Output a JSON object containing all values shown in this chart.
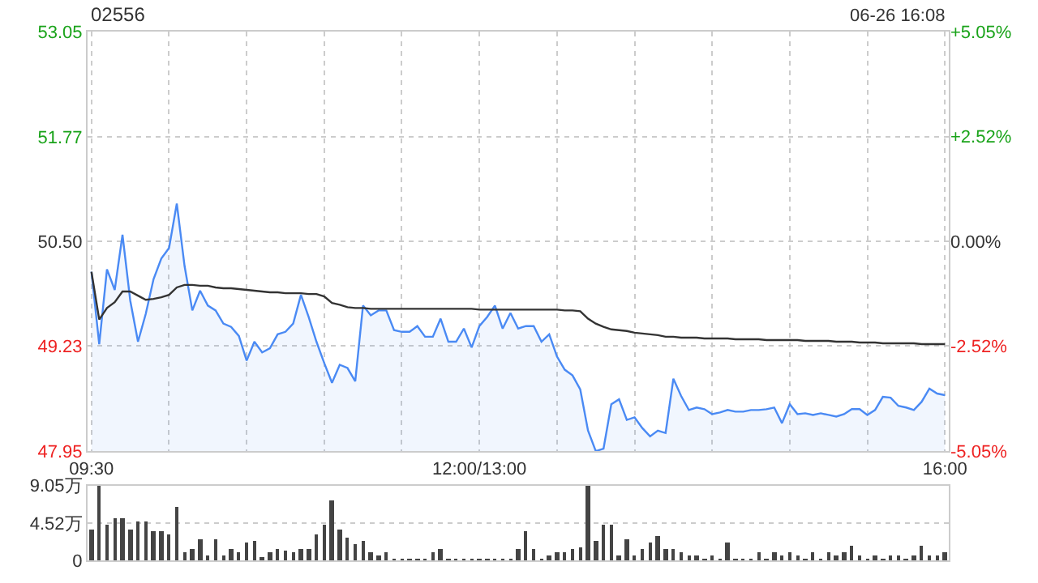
{
  "chart_data": [
    {
      "type": "line",
      "title": "02556",
      "annotations": [
        "06-26 16:08"
      ],
      "categories": [
        "09:30",
        null,
        null,
        null,
        null,
        null,
        null,
        null,
        null,
        null,
        null,
        null,
        null,
        null,
        null,
        null,
        null,
        null,
        null,
        null,
        null,
        null,
        null,
        null,
        null,
        null,
        null,
        null,
        null,
        null,
        null,
        null,
        null,
        null,
        null,
        null,
        null,
        null,
        null,
        null,
        null,
        null,
        null,
        null,
        null,
        null,
        null,
        null,
        null,
        null,
        "12:00/13:00",
        null,
        null,
        null,
        null,
        null,
        null,
        null,
        null,
        null,
        null,
        null,
        null,
        null,
        null,
        null,
        null,
        null,
        null,
        null,
        null,
        null,
        null,
        null,
        null,
        null,
        null,
        null,
        null,
        null,
        null,
        null,
        null,
        null,
        null,
        null,
        null,
        null,
        null,
        null,
        null,
        null,
        null,
        null,
        null,
        null,
        null,
        null,
        null,
        null,
        null,
        null,
        null,
        null,
        null,
        null,
        null,
        null,
        null,
        null,
        "16:00"
      ],
      "ylim": [
        47.95,
        53.05
      ],
      "yticks": [
        47.95,
        49.23,
        {
          "value": 50.5,
          "label": "50.50"
        },
        51.77,
        53.05
      ],
      "y2lim": [
        -5.05,
        5.05
      ],
      "y2ticks": [
        {
          "value": -5.05,
          "label": "-5.05%"
        },
        {
          "value": -2.52,
          "label": "-2.52%"
        },
        {
          "value": 0,
          "label": "0.00%"
        },
        {
          "value": 2.52,
          "label": "+2.52%"
        },
        {
          "value": 5.05,
          "label": "+5.05%"
        }
      ],
      "grid": true,
      "series": [
        {
          "type": "area",
          "color": "#4a8af4",
          "values": [
            50.13,
            49.25,
            50.16,
            49.91,
            50.58,
            49.78,
            49.28,
            49.62,
            50.04,
            50.29,
            50.42,
            50.96,
            50.2,
            49.66,
            49.9,
            49.72,
            49.66,
            49.5,
            49.46,
            49.35,
            49.05,
            49.28,
            49.15,
            49.2,
            49.37,
            49.4,
            49.5,
            49.85,
            49.58,
            49.28,
            49.02,
            48.78,
            49.0,
            48.96,
            48.8,
            49.72,
            49.6,
            49.66,
            49.66,
            49.42,
            49.4,
            49.4,
            49.47,
            49.34,
            49.34,
            49.56,
            49.28,
            49.28,
            49.44,
            49.21,
            49.47,
            49.58,
            49.72,
            49.44,
            49.63,
            49.44,
            49.47,
            49.47,
            49.28,
            49.37,
            49.1,
            48.94,
            48.87,
            48.7,
            48.2,
            47.95,
            47.98,
            48.52,
            48.58,
            48.33,
            48.36,
            48.23,
            48.13,
            48.2,
            48.17,
            48.83,
            48.62,
            48.45,
            48.48,
            48.46,
            48.4,
            48.42,
            48.45,
            48.43,
            48.43,
            48.45,
            48.45,
            48.46,
            48.48,
            48.29,
            48.52,
            48.4,
            48.41,
            48.39,
            48.41,
            48.39,
            48.37,
            48.4,
            48.46,
            48.46,
            48.39,
            48.45,
            48.61,
            48.6,
            48.5,
            48.48,
            48.45,
            48.55,
            48.71,
            48.65,
            48.63
          ]
        },
        {
          "type": "line",
          "color": "#333333",
          "values": [
            50.13,
            49.55,
            49.69,
            49.76,
            49.89,
            49.89,
            49.84,
            49.79,
            49.8,
            49.82,
            49.85,
            49.94,
            49.97,
            49.97,
            49.96,
            49.96,
            49.94,
            49.93,
            49.93,
            49.92,
            49.91,
            49.9,
            49.89,
            49.88,
            49.88,
            49.87,
            49.87,
            49.87,
            49.86,
            49.86,
            49.83,
            49.75,
            49.73,
            49.7,
            49.69,
            49.69,
            49.68,
            49.68,
            49.68,
            49.68,
            49.68,
            49.68,
            49.68,
            49.68,
            49.68,
            49.68,
            49.68,
            49.68,
            49.68,
            49.68,
            49.67,
            49.67,
            49.67,
            49.67,
            49.67,
            49.67,
            49.67,
            49.67,
            49.67,
            49.67,
            49.67,
            49.66,
            49.66,
            49.65,
            49.56,
            49.5,
            49.46,
            49.43,
            49.42,
            49.41,
            49.39,
            49.38,
            49.37,
            49.36,
            49.34,
            49.34,
            49.33,
            49.33,
            49.33,
            49.32,
            49.32,
            49.32,
            49.32,
            49.31,
            49.31,
            49.31,
            49.31,
            49.3,
            49.3,
            49.3,
            49.3,
            49.3,
            49.29,
            49.29,
            49.29,
            49.29,
            49.28,
            49.28,
            49.28,
            49.27,
            49.27,
            49.27,
            49.26,
            49.26,
            49.26,
            49.26,
            49.26,
            49.25,
            49.25,
            49.25,
            49.25
          ]
        }
      ]
    },
    {
      "type": "bar",
      "ylim": [
        0,
        9.05
      ],
      "categories": [
        null,
        null,
        null,
        null,
        null,
        null,
        null,
        null,
        null,
        null,
        null,
        null,
        null,
        null,
        null,
        null,
        null,
        null,
        null,
        null,
        null,
        null,
        null,
        null,
        null,
        null,
        null,
        null,
        null,
        null,
        null,
        null,
        null,
        null,
        null,
        null,
        null,
        null,
        null,
        null,
        null,
        null,
        null,
        null,
        null,
        null,
        null,
        null,
        null,
        null,
        null,
        null,
        null,
        null,
        null,
        null,
        null,
        null,
        null,
        null,
        null,
        null,
        null,
        null,
        null,
        null,
        null,
        null,
        null,
        null,
        null,
        null,
        null,
        null,
        null,
        null,
        null,
        null,
        null,
        null,
        null,
        null,
        null,
        null,
        null,
        null,
        null,
        null,
        null,
        null,
        null,
        null,
        null,
        null,
        null,
        null,
        null,
        null,
        null,
        null,
        null,
        null,
        null,
        null,
        null,
        null,
        null,
        null,
        null,
        null,
        null
      ],
      "yticks": [
        0,
        {
          "value": 4.52,
          "label": "4.52万"
        },
        {
          "value": 9.05,
          "label": "9.05万"
        }
      ],
      "grid": "y",
      "tick_labels": "y",
      "series": [
        {
          "color": "#444444",
          "values": [
            3.7,
            9.0,
            4.3,
            5.1,
            5.2,
            3.7,
            4.7,
            4.7,
            3.6,
            3.6,
            3.2,
            6.6,
            1.0,
            1.5,
            2.7,
            0.6,
            2.7,
            0.6,
            1.4,
            1.0,
            2.2,
            2.4,
            0.4,
            1.0,
            1.4,
            1.2,
            1.0,
            1.4,
            1.4,
            3.2,
            4.3,
            7.2,
            3.7,
            2.8,
            2.1,
            2.5,
            1.0,
            0.7,
            1.0,
            0.2,
            0.1,
            0.1,
            0.1,
            0.1,
            1.0,
            1.4,
            0.2,
            0.1,
            0.1,
            0.1,
            0.3,
            0.3,
            0.1,
            0.2,
            0.1,
            1.4,
            3.6,
            1.4,
            0.2,
            0.6,
            1.0,
            1.0,
            1.4,
            1.7,
            9.0,
            2.5,
            4.3,
            4.3,
            0.6,
            2.7,
            0.6,
            1.4,
            2.2,
            3.0,
            1.4,
            1.5,
            1.0,
            0.7,
            0.7,
            0.3,
            0.6,
            0.3,
            2.2,
            0.2,
            0.2,
            0.2,
            1.0,
            0.3,
            1.0,
            0.6,
            1.0,
            0.6,
            0.3,
            1.0,
            0.3,
            1.0,
            0.6,
            1.0,
            1.9,
            0.6,
            0.3,
            0.6,
            0.3,
            0.7,
            0.7,
            0.3,
            0.6,
            1.9,
            0.6,
            0.7,
            1.0
          ]
        }
      ]
    }
  ]
}
